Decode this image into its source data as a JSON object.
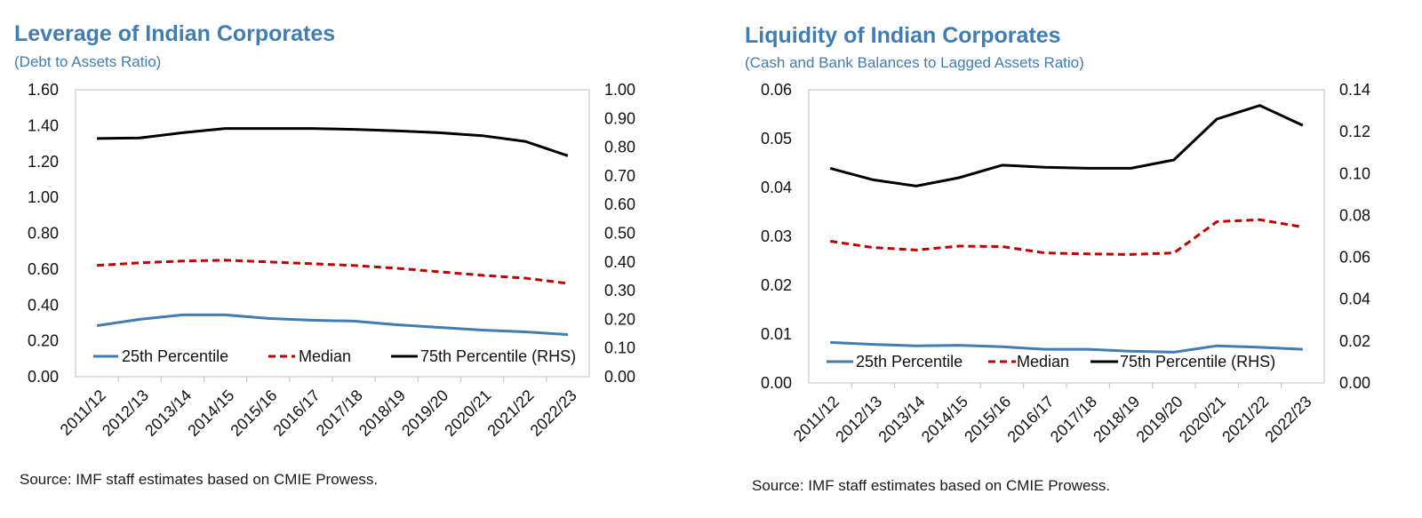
{
  "chart_data": [
    {
      "type": "line",
      "title": "Leverage of Indian Corporates",
      "subtitle": "(Debt to Assets Ratio)",
      "source": "Source: IMF staff estimates based on CMIE Prowess.",
      "categories": [
        "2011/12",
        "2012/13",
        "2013/14",
        "2014/15",
        "2015/16",
        "2016/17",
        "2017/18",
        "2018/19",
        "2019/20",
        "2020/21",
        "2021/22",
        "2022/23"
      ],
      "y_left": {
        "range": [
          0,
          1.6
        ],
        "ticks": [
          "0.00",
          "0.20",
          "0.40",
          "0.60",
          "0.80",
          "1.00",
          "1.20",
          "1.40",
          "1.60"
        ]
      },
      "y_right": {
        "range": [
          0,
          1.0
        ],
        "ticks": [
          "0.00",
          "0.10",
          "0.20",
          "0.30",
          "0.40",
          "0.50",
          "0.60",
          "0.70",
          "0.80",
          "0.90",
          "1.00"
        ]
      },
      "grid": false,
      "legend_position": "bottom-inside",
      "series": [
        {
          "name": "25th Percentile",
          "axis": "left",
          "color": "#3F7DB3",
          "style": "solid",
          "values": [
            0.285,
            0.32,
            0.345,
            0.345,
            0.325,
            0.315,
            0.31,
            0.29,
            0.275,
            0.26,
            0.25,
            0.235
          ]
        },
        {
          "name": "Median",
          "axis": "left",
          "color": "#C00000",
          "style": "dashed",
          "values": [
            0.62,
            0.635,
            0.645,
            0.65,
            0.64,
            0.63,
            0.62,
            0.605,
            0.585,
            0.565,
            0.55,
            0.52
          ]
        },
        {
          "name": "75th Percentile (RHS)",
          "axis": "right",
          "color": "#000000",
          "style": "solid",
          "values": [
            0.83,
            0.832,
            0.85,
            0.865,
            0.865,
            0.865,
            0.862,
            0.857,
            0.85,
            0.84,
            0.82,
            0.77
          ]
        }
      ]
    },
    {
      "type": "line",
      "title": "Liquidity of Indian Corporates",
      "subtitle": "(Cash and Bank Balances to Lagged Assets Ratio)",
      "source": "Source: IMF staff estimates based on CMIE Prowess.",
      "categories": [
        "2011/12",
        "2012/13",
        "2013/14",
        "2014/15",
        "2015/16",
        "2016/17",
        "2017/18",
        "2018/19",
        "2019/20",
        "2020/21",
        "2021/22",
        "2022/23"
      ],
      "y_left": {
        "range": [
          0,
          0.06
        ],
        "ticks": [
          "0.00",
          "0.01",
          "0.02",
          "0.03",
          "0.04",
          "0.05",
          "0.06"
        ]
      },
      "y_right": {
        "range": [
          0,
          0.14
        ],
        "ticks": [
          "0.00",
          "0.02",
          "0.04",
          "0.06",
          "0.08",
          "0.10",
          "0.12",
          "0.14"
        ]
      },
      "grid": false,
      "legend_position": "bottom-inside",
      "series": [
        {
          "name": "25th Percentile",
          "axis": "left",
          "color": "#3F7DB3",
          "style": "solid",
          "values": [
            0.0083,
            0.0079,
            0.0076,
            0.0077,
            0.0074,
            0.0069,
            0.0069,
            0.0065,
            0.0063,
            0.0076,
            0.0073,
            0.0069
          ]
        },
        {
          "name": "Median",
          "axis": "left",
          "color": "#C00000",
          "style": "dashed",
          "values": [
            0.029,
            0.0277,
            0.0272,
            0.028,
            0.0279,
            0.0266,
            0.0264,
            0.0263,
            0.0266,
            0.033,
            0.0334,
            0.0319
          ]
        },
        {
          "name": "75th Percentile (RHS)",
          "axis": "right",
          "color": "#000000",
          "style": "solid",
          "values": [
            0.1025,
            0.097,
            0.094,
            0.098,
            0.104,
            0.103,
            0.1025,
            0.1025,
            0.1065,
            0.126,
            0.1325,
            0.123
          ]
        }
      ]
    }
  ]
}
